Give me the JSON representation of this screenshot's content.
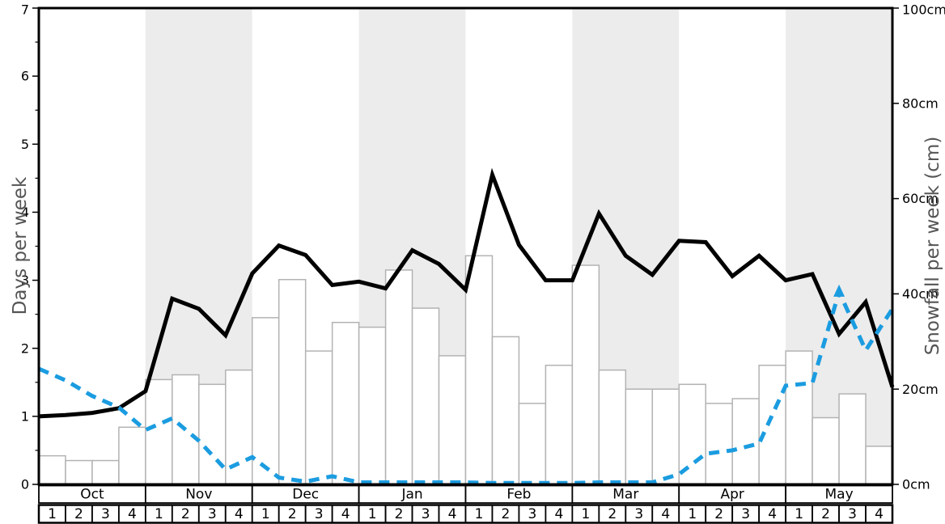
{
  "chart_data": {
    "type": "bar",
    "title": "",
    "months": [
      "Oct",
      "Nov",
      "Dec",
      "Jan",
      "Feb",
      "Mar",
      "Apr",
      "May"
    ],
    "week_labels": [
      "1",
      "2",
      "3",
      "4"
    ],
    "shaded_months": [
      "Nov",
      "Jan",
      "Mar",
      "May"
    ],
    "left_axis": {
      "label": "Days per week",
      "min": 0,
      "max": 7,
      "tick_labels": [
        "0",
        "1",
        "2",
        "3",
        "4",
        "5",
        "6",
        "7"
      ],
      "minor_tick_step": 0.5
    },
    "right_axis": {
      "label": "Snowfall per week (cm)",
      "min": 0,
      "max": 100,
      "tick_labels": [
        "0cm",
        "20cm",
        "40cm",
        "60cm",
        "80cm",
        "100cm"
      ]
    },
    "bars": {
      "name": "snowfall-per-week",
      "axis": "right",
      "units": "cm",
      "values_cm": [
        6,
        5,
        5,
        12,
        22,
        23,
        21,
        24,
        35,
        43,
        28,
        34,
        33,
        45,
        37,
        27,
        48,
        31,
        17,
        25,
        46,
        24,
        20,
        20,
        21,
        17,
        18,
        25,
        28,
        14,
        19,
        8
      ]
    },
    "series": [
      {
        "name": "days-per-week-solid-black-line",
        "style": "solid",
        "axis": "left",
        "x_note": "33 points at week boundaries from start of Oct to end of May",
        "values_days": [
          1.0,
          1.02,
          1.05,
          1.12,
          1.37,
          2.73,
          2.58,
          2.19,
          3.1,
          3.51,
          3.37,
          2.93,
          2.98,
          2.88,
          3.44,
          3.24,
          2.86,
          4.55,
          3.52,
          3.0,
          3.0,
          3.98,
          3.36,
          3.08,
          3.58,
          3.56,
          3.06,
          3.36,
          3.0,
          3.09,
          2.21,
          2.68,
          1.43
        ]
      },
      {
        "name": "dashed-blue-line",
        "style": "dashed",
        "axis": "left",
        "x_note": "33 points at week boundaries from start of Oct to end of May",
        "values_days": [
          1.7,
          1.53,
          1.3,
          1.13,
          0.8,
          0.97,
          0.64,
          0.22,
          0.4,
          0.1,
          0.04,
          0.12,
          0.03,
          0.03,
          0.03,
          0.03,
          0.03,
          0.02,
          0.02,
          0.02,
          0.02,
          0.03,
          0.03,
          0.03,
          0.15,
          0.45,
          0.5,
          0.6,
          1.45,
          1.49,
          2.83,
          1.97,
          2.58
        ]
      }
    ],
    "colors": {
      "black_line": "#000000",
      "blue_line": "#1b9ce0",
      "shaded_band": "#ececec",
      "bar_fill": "#ffffff",
      "bar_border": "#b3b3b3",
      "axis_title_gray": "#555555"
    },
    "legend": "none",
    "grid": "off"
  }
}
